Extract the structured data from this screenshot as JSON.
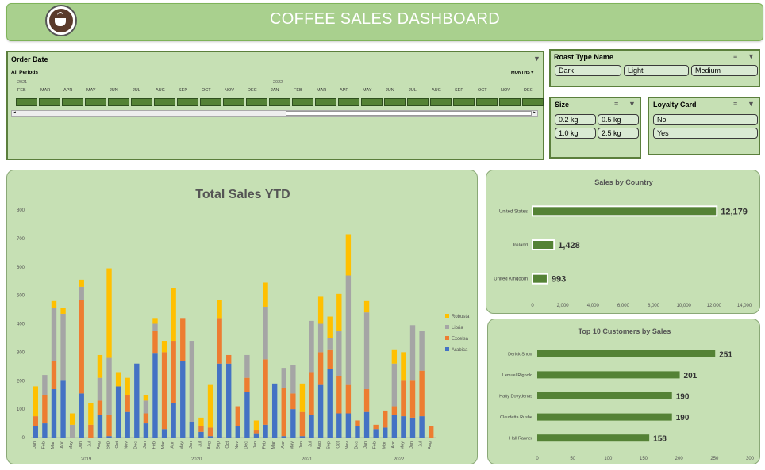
{
  "header": {
    "title": "COFFEE SALES DASHBOARD"
  },
  "order_date": {
    "title": "Order Date",
    "period_label": "All Periods",
    "level_label": "MONTHS",
    "years": [
      "2021",
      "2022"
    ],
    "months": [
      "FEB",
      "MAR",
      "APR",
      "MAY",
      "JUN",
      "JUL",
      "AUG",
      "SEP",
      "OCT",
      "NOV",
      "DEC",
      "JAN",
      "FEB",
      "MAR",
      "APR",
      "MAY",
      "JUN",
      "JUL",
      "AUG",
      "SEP",
      "OCT",
      "NOV",
      "DEC"
    ]
  },
  "roast": {
    "title": "Roast Type Name",
    "options": [
      "Dark",
      "Light",
      "Medium"
    ]
  },
  "size": {
    "title": "Size",
    "options": [
      "0.2 kg",
      "0.5 kg",
      "1.0 kg",
      "2.5 kg"
    ]
  },
  "loyalty": {
    "title": "Loyalty Card",
    "options": [
      "No",
      "Yes"
    ]
  },
  "colors": {
    "arabica": "#4472c4",
    "excelsa": "#ed7d31",
    "libria": "#a5a5a5",
    "robusta": "#ffc000",
    "bar_green": "#548235"
  },
  "total_sales": {
    "title": "Total Sales YTD",
    "chart_data": {
      "type": "bar",
      "stacked": true,
      "title": "Total Sales YTD",
      "ylim": [
        0,
        800
      ],
      "yticks": [
        0,
        100,
        200,
        300,
        400,
        500,
        600,
        700,
        800
      ],
      "legend_position": "right",
      "month_labels": [
        "Jan",
        "Feb",
        "Mar",
        "Apr",
        "May",
        "Jun",
        "Jul",
        "Aug",
        "Sep",
        "Oct",
        "Nov",
        "Dec",
        "Jan",
        "Feb",
        "Mar",
        "Apr",
        "May",
        "Jun",
        "Jul",
        "Aug",
        "Sep",
        "Oct",
        "Nov",
        "Dec",
        "Jan",
        "Feb",
        "Mar",
        "Apr",
        "May",
        "Jun",
        "Jul",
        "Aug",
        "Sep",
        "Oct",
        "Nov",
        "Dec",
        "Jan",
        "Feb",
        "Mar",
        "Apr",
        "May",
        "Jun",
        "Jul",
        "Aug"
      ],
      "year_labels": [
        {
          "label": "2019",
          "at": 5.5
        },
        {
          "label": "2020",
          "at": 17.5
        },
        {
          "label": "2021",
          "at": 29.5
        },
        {
          "label": "2022",
          "at": 39.5
        }
      ],
      "series": [
        {
          "name": "Arabica",
          "color": "#4472c4",
          "values": [
            40,
            50,
            170,
            200,
            0,
            155,
            0,
            80,
            5,
            180,
            90,
            260,
            50,
            295,
            30,
            120,
            270,
            55,
            20,
            5,
            260,
            260,
            40,
            160,
            15,
            45,
            190,
            5,
            100,
            5,
            80,
            185,
            240,
            85,
            85,
            40,
            90,
            30,
            35,
            80,
            75,
            70,
            75,
            0
          ]
        },
        {
          "name": "Excelsa",
          "color": "#ed7d31",
          "values": [
            35,
            100,
            100,
            0,
            0,
            330,
            45,
            50,
            75,
            0,
            60,
            0,
            35,
            80,
            270,
            220,
            150,
            0,
            20,
            30,
            160,
            30,
            70,
            50,
            10,
            230,
            0,
            170,
            55,
            85,
            150,
            115,
            70,
            130,
            100,
            20,
            80,
            15,
            60,
            30,
            125,
            130,
            160,
            40
          ]
        },
        {
          "name": "Libria",
          "color": "#a5a5a5",
          "values": [
            0,
            70,
            185,
            235,
            45,
            45,
            0,
            80,
            200,
            0,
            0,
            0,
            45,
            25,
            0,
            0,
            0,
            285,
            0,
            0,
            0,
            0,
            0,
            80,
            0,
            185,
            0,
            70,
            100,
            0,
            180,
            100,
            40,
            160,
            385,
            0,
            270,
            0,
            0,
            150,
            0,
            195,
            140,
            0
          ]
        },
        {
          "name": "Robusta",
          "color": "#ffc000",
          "values": [
            105,
            0,
            25,
            20,
            40,
            25,
            75,
            80,
            315,
            50,
            60,
            0,
            20,
            20,
            40,
            185,
            0,
            0,
            30,
            150,
            65,
            0,
            0,
            0,
            35,
            85,
            0,
            0,
            0,
            100,
            0,
            95,
            75,
            130,
            145,
            0,
            40,
            0,
            0,
            50,
            100,
            0,
            0,
            0
          ]
        }
      ]
    }
  },
  "sales_by_country": {
    "title": "Sales by Country",
    "chart_data": {
      "type": "bar",
      "orientation": "horizontal",
      "title": "Sales by Country",
      "categories": [
        "United States",
        "Ireland",
        "United Kingdom"
      ],
      "values": [
        12179,
        1428,
        993
      ],
      "value_labels": [
        "12,179",
        "1,428",
        "993"
      ],
      "xlim": [
        0,
        14000
      ],
      "xticks": [
        "0",
        "2,000",
        "4,000",
        "6,000",
        "8,000",
        "10,000",
        "12,000",
        "14,000"
      ]
    }
  },
  "top_customers": {
    "title": "Top 10 Customers by Sales",
    "chart_data": {
      "type": "bar",
      "orientation": "horizontal",
      "title": "Top 10 Customers by Sales",
      "categories": [
        "Derick Snow",
        "Lemuel Rignold",
        "Hatty Dovydenas",
        "Claudetta Rushe",
        "Hall Ranner"
      ],
      "values": [
        251,
        201,
        190,
        190,
        158
      ],
      "value_labels": [
        "251",
        "201",
        "190",
        "190",
        "158"
      ],
      "xlim": [
        0,
        300
      ],
      "xticks": [
        "0",
        "50",
        "100",
        "150",
        "200",
        "250",
        "300"
      ]
    }
  }
}
